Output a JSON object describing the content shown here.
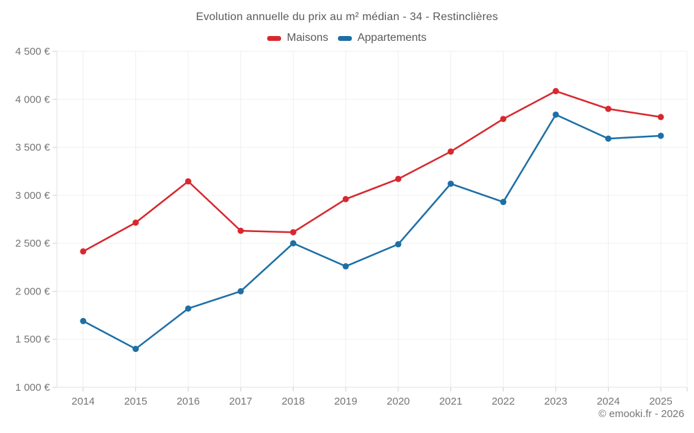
{
  "chart_data": {
    "type": "line",
    "title": "Evolution annuelle du prix au m² médian - 34 - Restinclières",
    "categories": [
      "2014",
      "2015",
      "2016",
      "2017",
      "2018",
      "2019",
      "2020",
      "2021",
      "2022",
      "2023",
      "2024",
      "2025"
    ],
    "series": [
      {
        "name": "Maisons",
        "color": "#d7282f",
        "values": [
          2415,
          2715,
          3145,
          2630,
          2615,
          2960,
          3170,
          3455,
          3795,
          4085,
          3900,
          3815
        ]
      },
      {
        "name": "Appartements",
        "color": "#1d6fa5",
        "values": [
          1690,
          1400,
          1820,
          2000,
          2500,
          2260,
          2490,
          3120,
          2930,
          3840,
          3590,
          3620
        ]
      }
    ],
    "ylim": [
      1000,
      4500
    ],
    "ytick_step": 500,
    "ytick_format": "{value} €",
    "xlabel": "",
    "ylabel": "",
    "grid": true,
    "legend_position": "top"
  },
  "footer": {
    "credit": "© emooki.fr - 2026"
  },
  "colors": {
    "background": "#ffffff",
    "title_text": "#595959",
    "tick_text": "#757575",
    "gridline": "#efefef",
    "axis_line": "#e0e0e0",
    "tick_mark": "#cfcfcf"
  }
}
